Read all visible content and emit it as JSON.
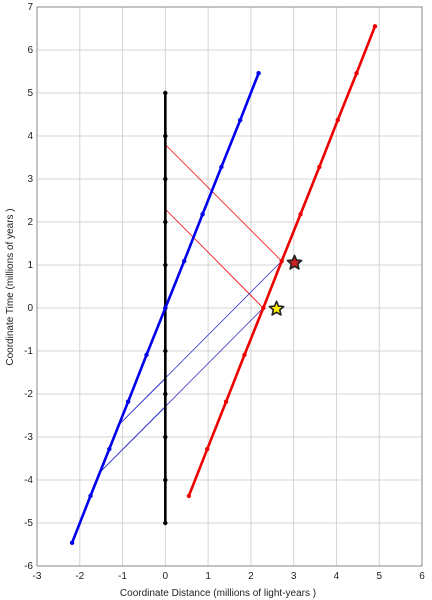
{
  "chart_data": {
    "type": "line",
    "xlabel": "Coordinate Distance (millions of light-years )",
    "ylabel": "Coordinate Time (millions of years )",
    "xlim": [
      -3,
      6
    ],
    "ylim": [
      -6,
      7
    ],
    "x_ticks": [
      -3,
      -2,
      -1,
      0,
      1,
      2,
      3,
      4,
      5,
      6
    ],
    "y_ticks": [
      -6,
      -5,
      -4,
      -3,
      -2,
      -1,
      0,
      1,
      2,
      3,
      4,
      5,
      6,
      7
    ],
    "grid": true,
    "legend": "none",
    "series": [
      {
        "color": "#000000",
        "style": "thick",
        "marker": "dot",
        "points": [
          [
            0,
            -5
          ],
          [
            0,
            -4
          ],
          [
            0,
            -3
          ],
          [
            0,
            -2
          ],
          [
            0,
            -1
          ],
          [
            0,
            0
          ],
          [
            0,
            1
          ],
          [
            0,
            2
          ],
          [
            0,
            3
          ],
          [
            0,
            4
          ],
          [
            0,
            5
          ]
        ]
      },
      {
        "color": "#0000ee",
        "style": "thick",
        "marker": "dot",
        "points": [
          [
            -2.18,
            -5.46
          ],
          [
            -1.75,
            -4.37
          ],
          [
            -1.31,
            -3.28
          ],
          [
            -0.87,
            -2.18
          ],
          [
            -0.44,
            -1.09
          ],
          [
            0,
            0
          ],
          [
            0.44,
            1.09
          ],
          [
            0.87,
            2.18
          ],
          [
            1.31,
            3.28
          ],
          [
            1.75,
            4.37
          ],
          [
            2.18,
            5.46
          ]
        ]
      },
      {
        "color": "#ee0000",
        "style": "thick",
        "marker": "dot",
        "points": [
          [
            0.55,
            -4.37
          ],
          [
            0.98,
            -3.28
          ],
          [
            1.42,
            -2.18
          ],
          [
            1.85,
            -1.09
          ],
          [
            2.29,
            0
          ],
          [
            2.72,
            1.09
          ],
          [
            3.16,
            2.18
          ],
          [
            3.6,
            3.28
          ],
          [
            4.03,
            4.37
          ],
          [
            4.47,
            5.46
          ],
          [
            4.9,
            6.55
          ]
        ]
      },
      {
        "color": "#ee0000",
        "style": "thin",
        "marker": "none",
        "points": [
          [
            0,
            3.8
          ],
          [
            2.72,
            1.09
          ]
        ]
      },
      {
        "color": "#ee0000",
        "style": "thin",
        "marker": "none",
        "points": [
          [
            0,
            2.3
          ],
          [
            2.29,
            0
          ]
        ]
      },
      {
        "color": "#3333cc",
        "style": "thin",
        "marker": "none",
        "points": [
          [
            2.72,
            1.09
          ],
          [
            -1.08,
            -2.71
          ]
        ]
      },
      {
        "color": "#3333cc",
        "style": "thin",
        "marker": "none",
        "points": [
          [
            2.29,
            0
          ],
          [
            -1.57,
            -3.86
          ]
        ]
      },
      {
        "color": "#3333cc",
        "style": "thin",
        "marker": "none",
        "points": [
          [
            0,
            -1.64
          ],
          [
            -1.08,
            -2.71
          ]
        ]
      },
      {
        "color": "#3333cc",
        "style": "thin",
        "marker": "none",
        "points": [
          [
            0,
            -2.3
          ],
          [
            -1.57,
            -3.86
          ]
        ]
      }
    ],
    "markers": [
      {
        "shape": "star",
        "x": 3.02,
        "y": 1.05,
        "fill": "#cc2222"
      },
      {
        "shape": "star",
        "x": 2.6,
        "y": -0.02,
        "fill": "#ffee00"
      }
    ]
  }
}
